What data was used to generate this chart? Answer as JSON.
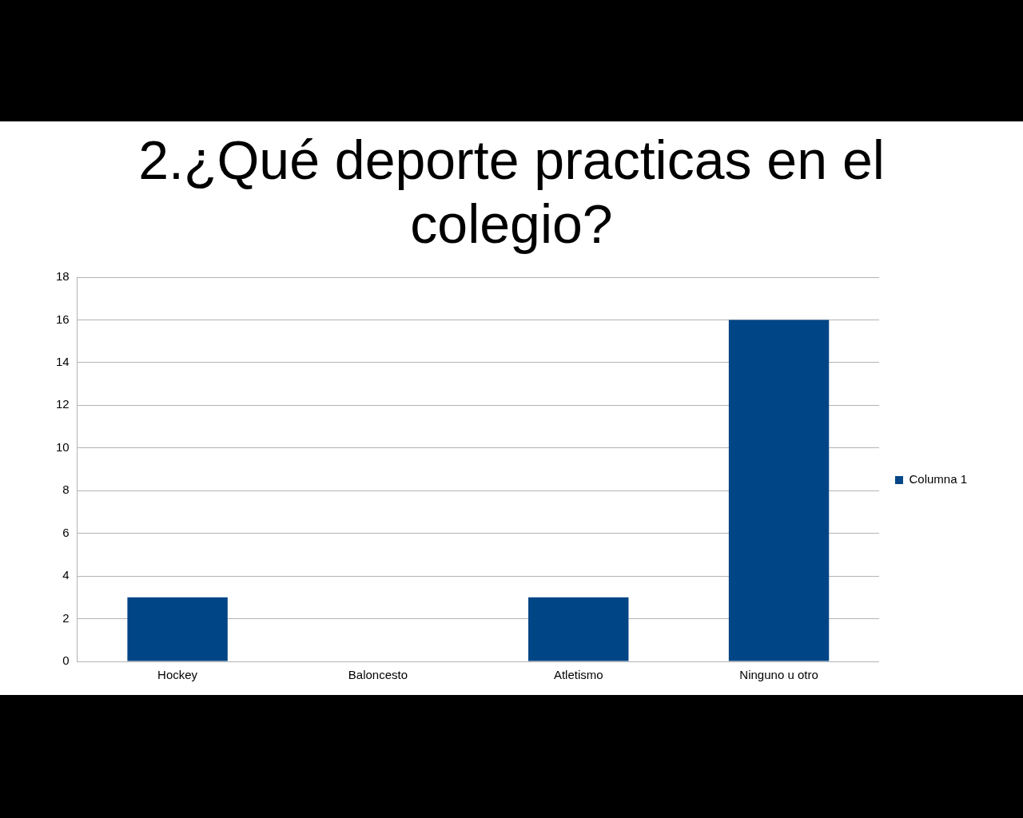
{
  "chart_data": {
    "type": "bar",
    "title": "2.¿Qué deporte practicas en el colegio?",
    "categories": [
      "Hockey",
      "Baloncesto",
      "Atletismo",
      "Ninguno u otro"
    ],
    "series": [
      {
        "name": "Columna 1",
        "color": "#004586",
        "values": [
          3,
          0,
          3,
          16
        ]
      }
    ],
    "ylim": [
      0,
      18
    ],
    "yticks": [
      0,
      2,
      4,
      6,
      8,
      10,
      12,
      14,
      16,
      18
    ],
    "grid": "y",
    "legend": "right"
  }
}
